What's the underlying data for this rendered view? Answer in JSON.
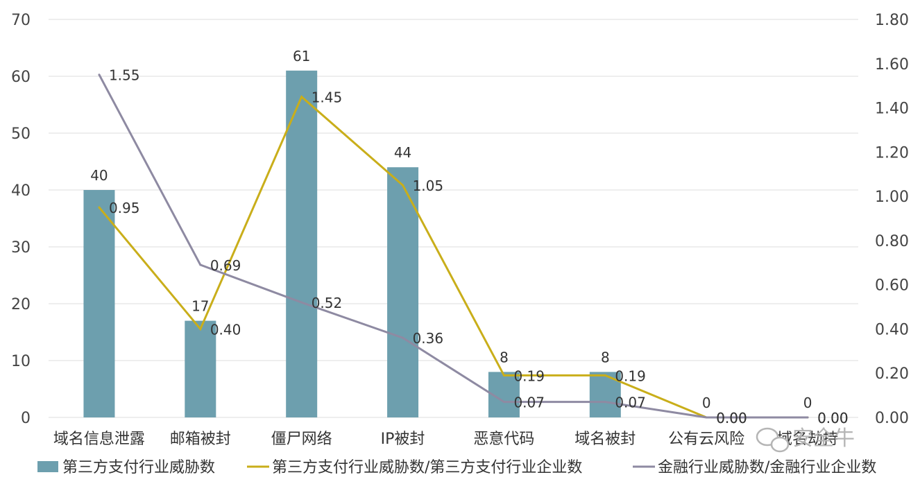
{
  "chart_data": {
    "type": "bar",
    "categories": [
      "域名信息泄露",
      "邮箱被封",
      "僵尸网络",
      "IP被封",
      "恶意代码",
      "域名被封",
      "公有云风险",
      "域名劫持"
    ],
    "bar_series": {
      "name": "第三方支付行业威胁数",
      "values": [
        40,
        17,
        61,
        44,
        8,
        8,
        0,
        0
      ],
      "labels": [
        "40",
        "17",
        "61",
        "44",
        "8",
        "8",
        "0",
        "0"
      ],
      "color": "#6d9fae"
    },
    "line_series": [
      {
        "name": "第三方支付行业威胁数/第三方支付行业企业数",
        "values": [
          0.95,
          0.4,
          1.45,
          1.05,
          0.19,
          0.19,
          0.0,
          0.0
        ],
        "labels": [
          "0.95",
          "0.40",
          "1.45",
          "1.05",
          "0.19",
          "0.19",
          "0.00",
          "0.00"
        ],
        "color": "#c9ae1a"
      },
      {
        "name": "金融行业威胁数/金融行业企业数",
        "values": [
          1.55,
          0.69,
          0.52,
          0.36,
          0.07,
          0.07,
          0.0,
          0.0
        ],
        "labels": [
          "1.55",
          "0.69",
          "0.52",
          "0.36",
          "0.07",
          "0.07",
          "0.00",
          "0.00"
        ],
        "color": "#8e8aa2"
      }
    ],
    "y_left": {
      "range": [
        0,
        70
      ],
      "ticks": [
        "0",
        "10",
        "20",
        "30",
        "40",
        "50",
        "60",
        "70"
      ]
    },
    "y_right": {
      "range": [
        0,
        1.8
      ],
      "ticks": [
        "0.00",
        "0.20",
        "0.40",
        "0.60",
        "0.80",
        "1.00",
        "1.20",
        "1.40",
        "1.60",
        "1.80"
      ]
    },
    "grid": true,
    "legend_position": "bottom"
  },
  "watermark": {
    "text": "安全牛",
    "icon": "wechat-icon"
  }
}
